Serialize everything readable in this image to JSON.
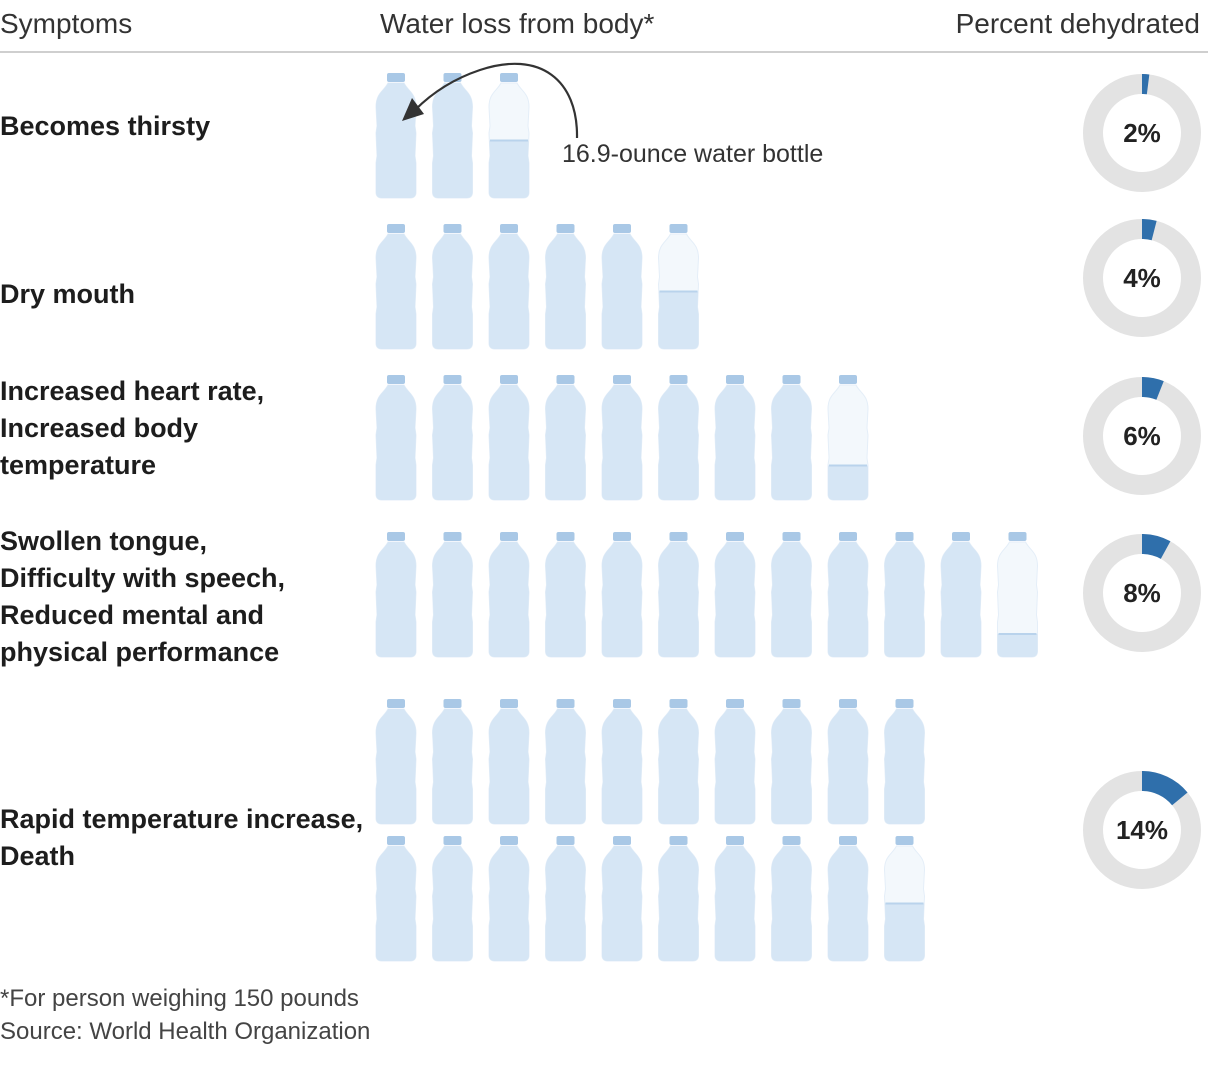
{
  "header": {
    "symptoms": "Symptoms",
    "water_loss": "Water loss from body*",
    "percent": "Percent dehydrated"
  },
  "annotation": "16.9-ounce water bottle",
  "footnote": "*For person weighing 150 pounds",
  "source": "Source: World Health Organization",
  "colors": {
    "bottle_fill": "#d6e6f5",
    "bottle_cap": "#a9c8e6",
    "bottle_empty": "#f3f8fc",
    "donut_track": "#e3e3e3",
    "donut_value": "#2f6fab"
  },
  "chart_data": {
    "type": "pictograph",
    "unit": "16.9-ounce water bottle",
    "rows": [
      {
        "symptoms": [
          "Becomes thirsty"
        ],
        "bottles": 2.5,
        "percent": 2,
        "percent_label": "2%"
      },
      {
        "symptoms": [
          "Dry mouth"
        ],
        "bottles": 5.5,
        "percent": 4,
        "percent_label": "4%"
      },
      {
        "symptoms": [
          "Increased heart rate,",
          "Increased body",
          "temperature"
        ],
        "bottles": 8.3,
        "percent": 6,
        "percent_label": "6%"
      },
      {
        "symptoms": [
          "Swollen tongue,",
          "Difficulty with speech,",
          "Reduced mental and",
          "physical performance"
        ],
        "bottles": 11.2,
        "percent": 8,
        "percent_label": "8%"
      },
      {
        "symptoms": [
          "Rapid temperature increase,",
          "Death"
        ],
        "bottles": 19.5,
        "percent": 14,
        "percent_label": "14%"
      }
    ]
  }
}
